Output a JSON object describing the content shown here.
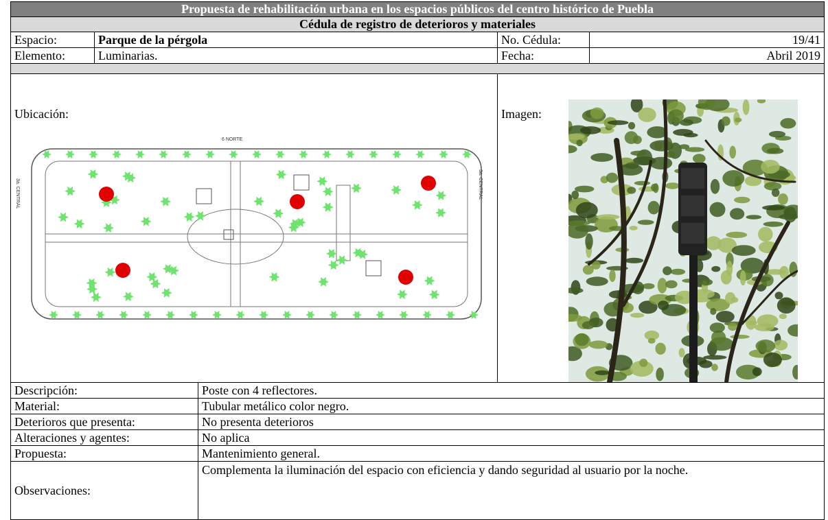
{
  "header": {
    "title": "Propuesta de rehabilitación urbana en los espacios públicos del centro histórico de Puebla",
    "subtitle": "Cédula de registro de deterioros y materiales"
  },
  "info": {
    "space_label": "Espacio:",
    "space": "Parque de la pérgola",
    "number_label": "No. Cédula:",
    "number": "19/41",
    "element_label": "Elemento:",
    "element": "Luminarias.",
    "date_label": "Fecha:",
    "date": "Abril 2019"
  },
  "location": {
    "label": "Ubicación:",
    "map_labels": [
      "6 NORTE",
      "3a. CENTRAL",
      "3a. CENTRAL"
    ]
  },
  "image": {
    "label": "Imagen:"
  },
  "details": {
    "rows": [
      [
        "Descripción:",
        "Poste con 4 reflectores."
      ],
      [
        "Material:",
        "Tubular metálico color negro."
      ],
      [
        "Deterioros que presenta:",
        "No presenta deterioros"
      ],
      [
        "Alteraciones y agentes:",
        "No aplica"
      ],
      [
        "Propuesta:",
        "Mantenimiento general."
      ],
      [
        "Observaciones:",
        "Complementa la iluminación del espacio con eficiencia y dando seguridad al usuario por la noche."
      ]
    ]
  }
}
